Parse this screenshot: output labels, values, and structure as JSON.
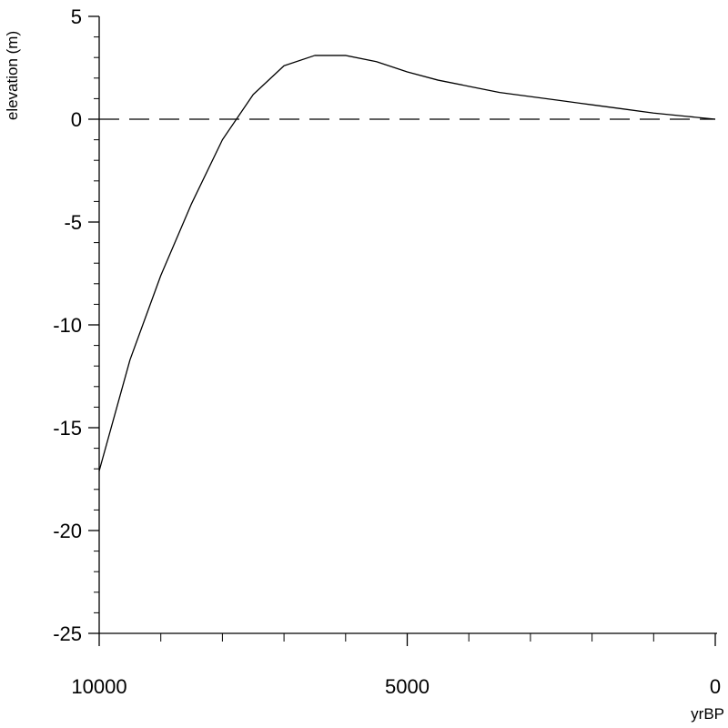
{
  "chart_data": {
    "type": "line",
    "title": "",
    "xlabel": "yrBP",
    "ylabel": "elevation (m)",
    "xlim": [
      10000,
      0
    ],
    "ylim": [
      -25,
      5
    ],
    "x_reversed": true,
    "x_major_ticks": [
      10000,
      5000,
      0
    ],
    "x_tick_labels": [
      "10000",
      "5000",
      "0"
    ],
    "x_minor_tick_step": 1000,
    "y_major_ticks": [
      5,
      0,
      -5,
      -10,
      -15,
      -20,
      -25
    ],
    "y_tick_labels": [
      "5",
      "0",
      "-5",
      "-10",
      "-15",
      "-20",
      "-25"
    ],
    "y_minor_tick_step": 1,
    "grid": false,
    "legend": "none",
    "reference_lines": [
      {
        "axis": "y",
        "value": 0,
        "style": "dashed"
      }
    ],
    "series": [
      {
        "x": [
          10000,
          9500,
          9000,
          8500,
          8000,
          7500,
          7000,
          6500,
          6000,
          5500,
          5000,
          4500,
          4000,
          3500,
          3000,
          2500,
          2000,
          1500,
          1000,
          500,
          0
        ],
        "y": [
          -17.1,
          -11.7,
          -7.6,
          -4.1,
          -1.0,
          1.2,
          2.6,
          3.1,
          3.1,
          2.8,
          2.3,
          1.9,
          1.6,
          1.3,
          1.1,
          0.9,
          0.7,
          0.5,
          0.3,
          0.15,
          0.0
        ]
      }
    ],
    "colors": {
      "line": "#000000",
      "axis": "#000000",
      "reference_line": "#000000"
    }
  }
}
